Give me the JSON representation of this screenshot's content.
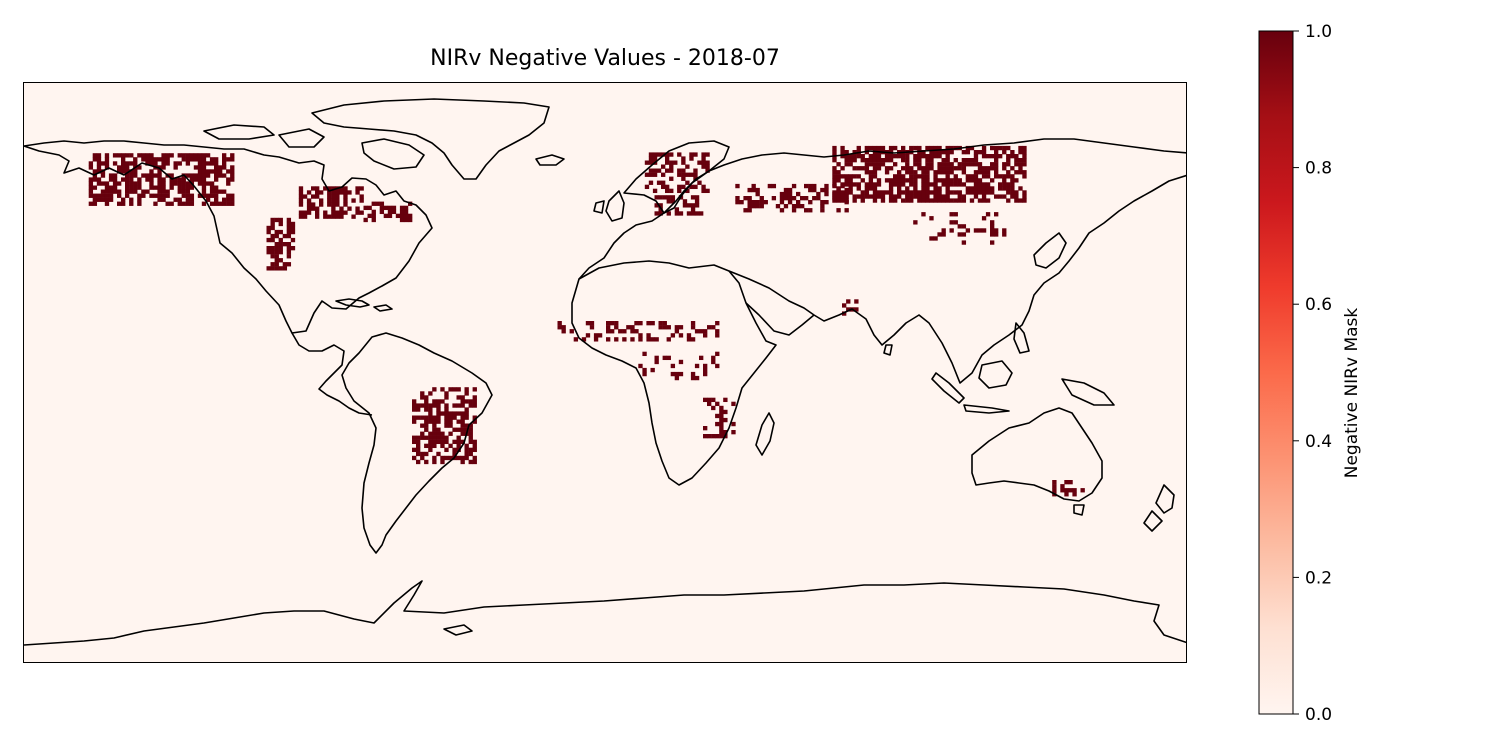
{
  "figure": {
    "title": "NIRv Negative Values - 2018-07"
  },
  "colors": {
    "ocean_background": "#fff5f0",
    "mask_true": "#67000d",
    "coastline": "#000000",
    "colormap": "Reds",
    "colormap_stops": [
      "#fff5f0",
      "#fee0d2",
      "#fcbba1",
      "#fc9272",
      "#fb6a4a",
      "#ef3b2c",
      "#cb181d",
      "#a50f15",
      "#67000d"
    ]
  },
  "colorbar": {
    "label": "Negative NIRv Mask",
    "ticks": [
      "0.0",
      "0.2",
      "0.4",
      "0.6",
      "0.8",
      "1.0"
    ],
    "range": [
      0,
      1
    ]
  },
  "map_data": {
    "projection": "PlateCarree",
    "extent_lon": [
      -180,
      180
    ],
    "extent_lat": [
      -90,
      90
    ],
    "variable": "Negative NIRv Mask",
    "value_range": [
      0,
      1
    ],
    "regions_with_value_1": [
      {
        "region": "Alaska / NW Canada",
        "lon": [
          -160,
          -115
        ],
        "lat": [
          52,
          68
        ]
      },
      {
        "region": "Hudson Bay lowlands",
        "lon": [
          -95,
          -75
        ],
        "lat": [
          48,
          57
        ]
      },
      {
        "region": "US Great Plains",
        "lon": [
          -105,
          -97
        ],
        "lat": [
          32,
          48
        ]
      },
      {
        "region": "Quebec / Labrador",
        "lon": [
          -75,
          -60
        ],
        "lat": [
          47,
          53
        ]
      },
      {
        "region": "Scandinavia / Finland",
        "lon": [
          12,
          32
        ],
        "lat": [
          56,
          68
        ]
      },
      {
        "region": "Baltic / Eastern Europe",
        "lon": [
          15,
          30
        ],
        "lat": [
          49,
          55
        ]
      },
      {
        "region": "Central Siberia",
        "lon": [
          70,
          130
        ],
        "lat": [
          53,
          70
        ]
      },
      {
        "region": "West Siberian belt",
        "lon": [
          40,
          75
        ],
        "lat": [
          50,
          58
        ]
      },
      {
        "region": "Sahel",
        "lon": [
          -15,
          35
        ],
        "lat": [
          10,
          16
        ]
      },
      {
        "region": "Central Africa",
        "lon": [
          10,
          35
        ],
        "lat": [
          -2,
          6
        ]
      },
      {
        "region": "Mozambique / Malawi",
        "lon": [
          30,
          40
        ],
        "lat": [
          -20,
          -8
        ]
      },
      {
        "region": "Central Brazil",
        "lon": [
          -60,
          -40
        ],
        "lat": [
          -28,
          -5
        ]
      },
      {
        "region": "India",
        "lon": [
          73,
          77
        ],
        "lat": [
          18,
          22
        ]
      },
      {
        "region": "Northeast China",
        "lon": [
          95,
          125
        ],
        "lat": [
          40,
          50
        ]
      },
      {
        "region": "SE Australia",
        "lon": [
          138,
          148
        ],
        "lat": [
          -38,
          -34
        ]
      }
    ]
  }
}
